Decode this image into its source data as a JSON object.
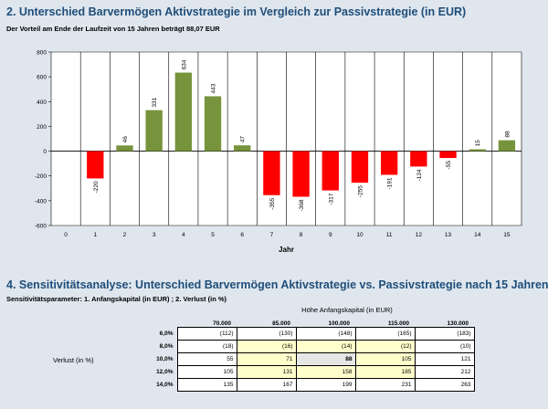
{
  "section2": {
    "title": "2. Unterschied Barvermögen Aktivstrategie im Vergleich zur Passivstrategie  (in EUR)",
    "subtitle": "Der Vorteil am Ende der Laufzeit von 15 Jahren beträgt 88,07 EUR"
  },
  "chart_data": {
    "type": "bar",
    "categories": [
      "0",
      "1",
      "2",
      "3",
      "4",
      "5",
      "6",
      "7",
      "8",
      "9",
      "10",
      "11",
      "12",
      "13",
      "14",
      "15"
    ],
    "values": [
      null,
      -220,
      46,
      331,
      634,
      443,
      47,
      -355,
      -368,
      -317,
      -255,
      -191,
      -124,
      -55,
      15,
      88
    ],
    "data_labels": [
      "",
      "-220",
      "46",
      "331",
      "634",
      "443",
      "47",
      "-355",
      "-368",
      "-317",
      "-255",
      "-191",
      "-124",
      "-55",
      "15",
      "88"
    ],
    "xlabel": "Jahr",
    "ylabel": "",
    "ylim": [
      -600,
      800
    ],
    "yticks": [
      -600,
      -400,
      -200,
      0,
      200,
      400,
      600,
      800
    ],
    "ytick_labels": [
      "-600",
      "-400",
      "-200",
      "0",
      "200",
      "400",
      "600",
      "800"
    ],
    "positive_color": "#77933c",
    "negative_color": "#ff0000",
    "grid": "vertical"
  },
  "section4": {
    "title": "4. Sensitivitätsanalyse: Unterschied Barvermögen Aktivstrategie vs. Passivstrategie nach 15 Jahren",
    "subtitle": "Sensitivitätsparameter: 1. Anfangskapital (in EUR) ; 2. Verlust (in %)",
    "col_axis_label": "Höhe Anfangskapital (in EUR)",
    "row_axis_label": "Verlust (in %)",
    "columns": [
      "70.000",
      "85.000",
      "100.000",
      "115.000",
      "130.000"
    ],
    "rows": [
      {
        "label": "6,0%",
        "cells": [
          "(112)",
          "(130)",
          "(148)",
          "(165)",
          "(183)"
        ]
      },
      {
        "label": "8,0%",
        "cells": [
          "(18)",
          "(16)",
          "(14)",
          "(12)",
          "(10)"
        ]
      },
      {
        "label": "10,0%",
        "cells": [
          "55",
          "71",
          "88",
          "105",
          "121"
        ]
      },
      {
        "label": "12,0%",
        "cells": [
          "105",
          "131",
          "158",
          "185",
          "212"
        ]
      },
      {
        "label": "14,0%",
        "cells": [
          "135",
          "167",
          "199",
          "231",
          "263"
        ]
      }
    ],
    "highlight_color": "#ffffcc",
    "base_cell_color": "#e6e6e6"
  }
}
